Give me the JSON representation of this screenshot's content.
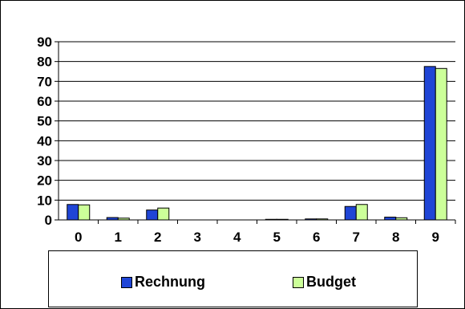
{
  "chart_data": {
    "type": "bar",
    "categories": [
      "0",
      "1",
      "2",
      "3",
      "4",
      "5",
      "6",
      "7",
      "8",
      "9"
    ],
    "series": [
      {
        "name": "Rechnung",
        "color": "#1f45d6",
        "values": [
          7.8,
          1.2,
          5.0,
          0,
          0,
          0.3,
          0.5,
          6.8,
          1.4,
          77.5
        ]
      },
      {
        "name": "Budget",
        "color": "#ccff99",
        "values": [
          7.6,
          0.9,
          6.0,
          0,
          0,
          0.3,
          0.5,
          7.8,
          1.1,
          76.5
        ]
      }
    ],
    "yticks": [
      "0",
      "10",
      "20",
      "30",
      "40",
      "50",
      "60",
      "70",
      "80",
      "90"
    ],
    "ylim": [
      0,
      90
    ],
    "grid": true,
    "legend_position": "bottom"
  }
}
